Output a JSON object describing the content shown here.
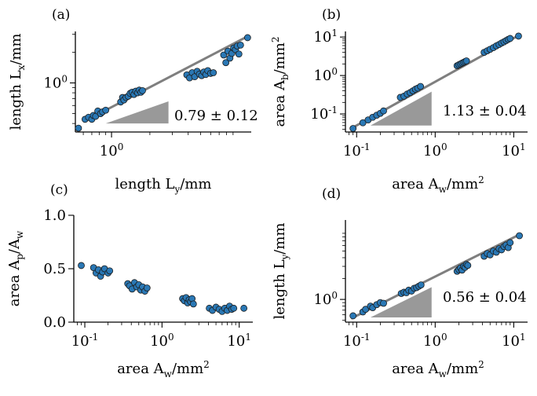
{
  "chart_data": [
    {
      "panel": "(a)",
      "type": "scatter",
      "xlabel": "length L_y/mm",
      "ylabel": "length L_x/mm",
      "xscale": "log",
      "yscale": "log",
      "xlim": [
        0.52,
        12.5
      ],
      "ylim": [
        0.33,
        3.2
      ],
      "xticks": [
        {
          "value": 1,
          "label": "10^0"
        }
      ],
      "yticks": [
        {
          "value": 1,
          "label": "10^0"
        }
      ],
      "annotation": "0.79 ± 0.12",
      "slope": 0.79,
      "fit": {
        "x": [
          0.6,
          11.5
        ],
        "y": [
          0.415,
          2.83
        ]
      },
      "triangle": {
        "x": [
          0.9,
          2.8
        ],
        "y": [
          0.4,
          0.66
        ]
      },
      "x": [
        0.55,
        0.62,
        0.66,
        0.7,
        0.72,
        0.75,
        0.78,
        0.82,
        0.85,
        0.9,
        1.18,
        1.22,
        1.25,
        1.3,
        1.35,
        1.4,
        1.45,
        1.5,
        1.55,
        1.6,
        1.65,
        1.7,
        1.75,
        3.9,
        4.1,
        4.3,
        4.5,
        4.7,
        4.9,
        5.1,
        5.3,
        5.5,
        5.7,
        6.0,
        6.3,
        7.6,
        7.9,
        8.2,
        8.5,
        8.8,
        9.1,
        9.4,
        9.7,
        10.0,
        10.3,
        11.7
      ],
      "y": [
        0.36,
        0.44,
        0.46,
        0.44,
        0.48,
        0.47,
        0.53,
        0.5,
        0.52,
        0.54,
        0.65,
        0.72,
        0.68,
        0.72,
        0.74,
        0.79,
        0.81,
        0.77,
        0.83,
        0.8,
        0.85,
        0.81,
        0.84,
        1.2,
        1.12,
        1.26,
        1.15,
        1.3,
        1.22,
        1.18,
        1.28,
        1.21,
        1.32,
        1.24,
        1.26,
        1.88,
        1.58,
        2.05,
        1.75,
        1.95,
        2.2,
        2.12,
        2.3,
        1.92,
        2.35,
        2.78
      ]
    },
    {
      "panel": "(b)",
      "type": "scatter",
      "xlabel": "area A_w/mm^2",
      "ylabel": "area A_b/mm^2",
      "xscale": "log",
      "yscale": "log",
      "xlim": [
        0.072,
        15
      ],
      "ylim": [
        0.034,
        14
      ],
      "xticks": [
        {
          "value": 0.1,
          "label": "10^-1"
        },
        {
          "value": 1,
          "label": "10^0"
        },
        {
          "value": 10,
          "label": "10^1"
        }
      ],
      "yticks": [
        {
          "value": 0.1,
          "label": "10^-1"
        },
        {
          "value": 1,
          "label": "10^0"
        },
        {
          "value": 10,
          "label": "10^1"
        }
      ],
      "annotation": "1.13 ± 0.04",
      "slope": 1.13,
      "fit": {
        "x": [
          0.085,
          12.0
        ],
        "y": [
          0.042,
          11.5
        ]
      },
      "triangle": {
        "x": [
          0.15,
          0.9
        ],
        "y": [
          0.05,
          0.38
        ]
      },
      "x": [
        0.09,
        0.12,
        0.14,
        0.16,
        0.18,
        0.2,
        0.22,
        0.36,
        0.4,
        0.44,
        0.48,
        0.52,
        0.56,
        0.6,
        0.65,
        1.9,
        2.0,
        2.1,
        2.2,
        2.3,
        2.4,
        2.5,
        4.2,
        4.6,
        5.0,
        5.5,
        6.0,
        6.5,
        7.0,
        7.5,
        8.0,
        8.5,
        9.0,
        11.5
      ],
      "y": [
        0.042,
        0.059,
        0.07,
        0.082,
        0.093,
        0.104,
        0.12,
        0.27,
        0.29,
        0.33,
        0.36,
        0.4,
        0.44,
        0.47,
        0.52,
        1.8,
        1.9,
        2.0,
        2.1,
        2.2,
        2.3,
        2.4,
        4.0,
        4.4,
        4.8,
        5.3,
        5.9,
        6.4,
        7.0,
        7.5,
        8.1,
        8.7,
        9.2,
        10.6
      ]
    },
    {
      "panel": "(c)",
      "type": "scatter",
      "xlabel": "area A_w/mm^2",
      "ylabel": "area A_p/A_w",
      "xscale": "log",
      "yscale": "linear",
      "xlim": [
        0.072,
        15
      ],
      "ylim": [
        0,
        1
      ],
      "xticks": [
        {
          "value": 0.1,
          "label": "10^-1"
        },
        {
          "value": 1,
          "label": "10^0"
        },
        {
          "value": 10,
          "label": "10^1"
        }
      ],
      "yticks": [
        {
          "value": 0,
          "label": "0.0"
        },
        {
          "value": 0.5,
          "label": "0.5"
        },
        {
          "value": 1,
          "label": "1.0"
        }
      ],
      "x": [
        0.09,
        0.13,
        0.14,
        0.15,
        0.16,
        0.17,
        0.18,
        0.2,
        0.21,
        0.36,
        0.38,
        0.41,
        0.44,
        0.47,
        0.5,
        0.53,
        0.56,
        0.6,
        0.64,
        1.85,
        1.95,
        2.05,
        2.15,
        2.25,
        2.35,
        2.45,
        2.55,
        4.1,
        4.5,
        5.0,
        5.5,
        6.0,
        6.5,
        7.0,
        7.5,
        8.0,
        8.5,
        11.5
      ],
      "y": [
        0.53,
        0.51,
        0.46,
        0.49,
        0.43,
        0.47,
        0.5,
        0.46,
        0.48,
        0.36,
        0.34,
        0.31,
        0.37,
        0.33,
        0.35,
        0.3,
        0.33,
        0.29,
        0.32,
        0.22,
        0.2,
        0.23,
        0.18,
        0.21,
        0.19,
        0.22,
        0.17,
        0.13,
        0.11,
        0.14,
        0.12,
        0.1,
        0.13,
        0.11,
        0.15,
        0.12,
        0.13,
        0.13
      ]
    },
    {
      "panel": "(d)",
      "type": "scatter",
      "xlabel": "area A_w/mm^2",
      "ylabel": "length L_y/mm",
      "xscale": "log",
      "yscale": "log",
      "xlim": [
        0.072,
        15
      ],
      "ylim": [
        0.47,
        14
      ],
      "xticks": [
        {
          "value": 0.1,
          "label": "10^-1"
        },
        {
          "value": 1,
          "label": "10^0"
        },
        {
          "value": 10,
          "label": "10^1"
        }
      ],
      "yticks": [
        {
          "value": 1,
          "label": "10^0"
        }
      ],
      "annotation": "0.56 ± 0.04",
      "slope": 0.56,
      "fit": {
        "x": [
          0.085,
          12.0
        ],
        "y": [
          0.53,
          8.7
        ]
      },
      "triangle": {
        "x": [
          0.15,
          0.9
        ],
        "y": [
          0.55,
          1.5
        ]
      },
      "x": [
        0.09,
        0.12,
        0.13,
        0.15,
        0.16,
        0.18,
        0.2,
        0.22,
        0.37,
        0.4,
        0.43,
        0.46,
        0.5,
        0.54,
        0.58,
        0.62,
        0.66,
        1.9,
        2.0,
        2.1,
        2.2,
        2.3,
        2.4,
        2.5,
        2.6,
        4.2,
        4.6,
        5.0,
        5.5,
        6.0,
        6.5,
        7.0,
        7.5,
        8.0,
        8.5,
        9.0,
        11.8
      ],
      "y": [
        0.58,
        0.66,
        0.72,
        0.8,
        0.76,
        0.84,
        0.9,
        0.88,
        1.22,
        1.27,
        1.25,
        1.36,
        1.32,
        1.45,
        1.48,
        1.55,
        1.62,
        2.55,
        2.7,
        2.85,
        2.65,
        3.0,
        2.9,
        3.2,
        3.1,
        4.2,
        4.6,
        4.4,
        5.0,
        4.8,
        5.4,
        5.2,
        5.8,
        6.1,
        5.6,
        6.6,
        8.3
      ]
    }
  ]
}
